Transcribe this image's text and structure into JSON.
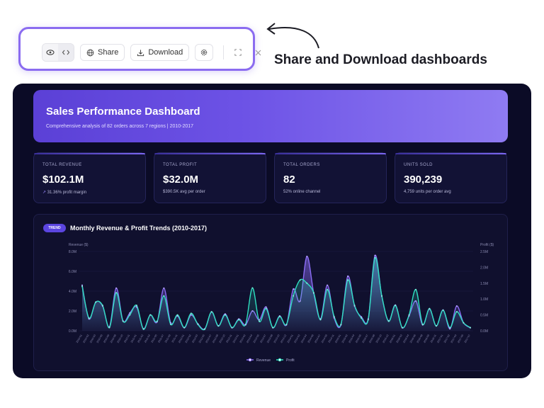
{
  "toolbar": {
    "share_label": "Share",
    "download_label": "Download",
    "icons": [
      "eye-icon",
      "code-icon",
      "globe-icon",
      "download-icon",
      "settings-icon",
      "expand-icon",
      "close-icon"
    ]
  },
  "callout": {
    "text": "Share and Download dashboards"
  },
  "dashboard": {
    "title": "Sales Performance Dashboard",
    "subtitle": "Comprehensive analysis of 82 orders across 7 regions | 2010-2017",
    "kpis": [
      {
        "label": "TOTAL REVENUE",
        "value": "$102.1M",
        "sub": "31.36% profit margin",
        "sub_prefix": "↗ "
      },
      {
        "label": "TOTAL PROFIT",
        "value": "$32.0M",
        "sub": "$390.5K avg per order",
        "sub_prefix": ""
      },
      {
        "label": "TOTAL ORDERS",
        "value": "82",
        "sub": "52% online channel",
        "sub_prefix": ""
      },
      {
        "label": "UNITS SOLD",
        "value": "390,239",
        "sub": "4,759 units per order avg",
        "sub_prefix": ""
      }
    ],
    "chart_badge": "TREND",
    "chart_title": "Monthly Revenue & Profit Trends (2010-2017)"
  },
  "colors": {
    "revenue": "#8b6cf5",
    "profit": "#2ee0c0",
    "accent": "#8b6cf0"
  },
  "chart_data": {
    "type": "line",
    "ylabel_left": "Revenue ($)",
    "ylabel_right": "Profit ($)",
    "left_ticks": [
      "0.0M",
      "2.0M",
      "4.0M",
      "6.0M",
      "8.0M"
    ],
    "right_ticks": [
      "0.0M",
      "0.5M",
      "1.0M",
      "1.5M",
      "2.0M",
      "2.5M"
    ],
    "ylim_left": [
      0,
      8000000
    ],
    "ylim_right": [
      0,
      2500000
    ],
    "legend": [
      "Revenue",
      "Profit"
    ],
    "legend_position": "bottom",
    "x": [
      "2010-01",
      "2010-02",
      "2010-03",
      "2010-05",
      "2010-06",
      "2010-08",
      "2010-10",
      "2010-11",
      "2011-01",
      "2011-02",
      "2011-04",
      "2011-05",
      "2011-07",
      "2011-09",
      "2011-11",
      "2012-01",
      "2012-02",
      "2012-03",
      "2012-05",
      "2012-07",
      "2012-08",
      "2012-10",
      "2012-11",
      "2013-01",
      "2013-02",
      "2013-04",
      "2013-05",
      "2013-07",
      "2013-08",
      "2013-10",
      "2013-12",
      "2014-01",
      "2014-03",
      "2014-04",
      "2014-06",
      "2014-07",
      "2014-09",
      "2014-11",
      "2015-01",
      "2015-02",
      "2015-04",
      "2015-05",
      "2015-07",
      "2015-08",
      "2015-10",
      "2015-12",
      "2016-01",
      "2016-03",
      "2016-04",
      "2016-06",
      "2016-08",
      "2016-09",
      "2016-11",
      "2017-01",
      "2017-02",
      "2017-04",
      "2017-05",
      "2017-07"
    ],
    "series": [
      {
        "name": "Revenue",
        "values": [
          4.6,
          1.2,
          2.9,
          2.5,
          0.4,
          4.3,
          1.0,
          1.8,
          2.4,
          0.2,
          1.6,
          0.9,
          4.3,
          0.8,
          1.5,
          0.3,
          1.6,
          0.7,
          0.2,
          1.9,
          0.5,
          1.7,
          0.3,
          1.2,
          0.6,
          2.0,
          1.1,
          2.4,
          0.3,
          1.5,
          0.6,
          4.2,
          3.0,
          7.5,
          3.8,
          1.2,
          4.6,
          1.3,
          0.6,
          5.5,
          2.5,
          1.4,
          1.2,
          7.6,
          3.5,
          1.0,
          2.6,
          0.3,
          1.5,
          3.0,
          0.6,
          2.2,
          0.5,
          2.1,
          0.2,
          2.5,
          0.8,
          0.3
        ]
      },
      {
        "name": "Profit",
        "values": [
          1.4,
          0.4,
          0.9,
          0.8,
          0.1,
          1.2,
          0.3,
          0.5,
          0.8,
          0.05,
          0.5,
          0.3,
          1.1,
          0.2,
          0.5,
          0.1,
          0.55,
          0.2,
          0.05,
          0.6,
          0.15,
          0.5,
          0.1,
          0.35,
          0.2,
          1.35,
          0.3,
          0.7,
          0.1,
          0.45,
          0.2,
          1.1,
          1.6,
          1.5,
          1.2,
          0.35,
          1.3,
          0.45,
          0.2,
          1.6,
          0.8,
          0.4,
          0.35,
          2.3,
          1.1,
          0.3,
          0.8,
          0.1,
          0.5,
          1.3,
          0.2,
          0.7,
          0.15,
          0.65,
          0.1,
          0.6,
          0.25,
          0.1
        ]
      }
    ]
  }
}
